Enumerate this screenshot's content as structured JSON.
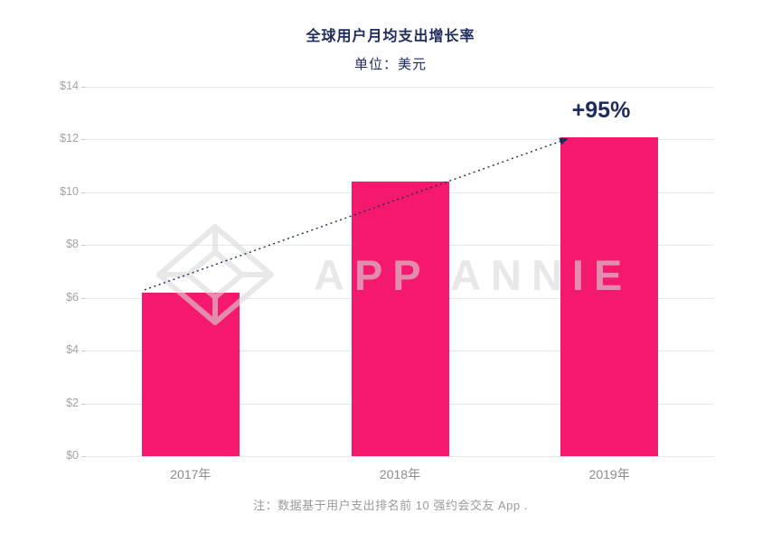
{
  "header": {
    "title": "全球用户月均支出增长率",
    "subtitle": "单位：美元"
  },
  "chart_data": {
    "type": "bar",
    "title": "全球用户月均支出增长率",
    "unit_label": "单位：美元",
    "categories": [
      "2017年",
      "2018年",
      "2019年"
    ],
    "values": [
      6.2,
      10.4,
      12.1
    ],
    "xlabel": "",
    "ylabel": "",
    "ylim": [
      0,
      14
    ],
    "ytick_step": 2,
    "ytick_labels": [
      "$0",
      "$2",
      "$4",
      "$6",
      "$8",
      "$10",
      "$12",
      "$14"
    ],
    "grid": true,
    "legend": "none",
    "bar_color": "#f4196c",
    "annotation": {
      "text": "+95%",
      "from_category": "2017年",
      "to_category": "2019年",
      "color": "#1d2b5f",
      "style": "dotted-arrow"
    }
  },
  "watermark": {
    "text": "APP ANNIE",
    "icon": "diamond-gem-icon",
    "color": "#d9d9d9"
  },
  "footer": {
    "note": "注：数据基于用户支出排名前 10 强约会交友 App ."
  }
}
